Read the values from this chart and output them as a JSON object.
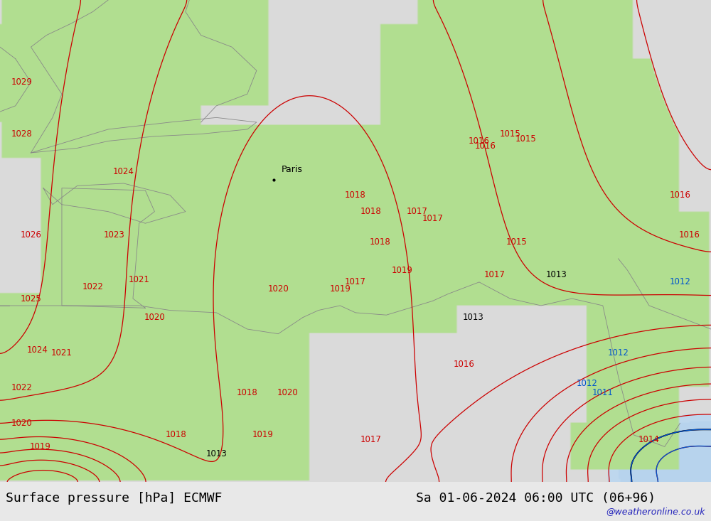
{
  "title_left": "Surface pressure [hPa] ECMWF",
  "title_right": "Sa 01-06-2024 06:00 UTC (06+96)",
  "watermark": "@weatheronline.co.uk",
  "bg_gray": [
    0.855,
    0.855,
    0.855
  ],
  "bg_green": [
    0.698,
    0.871,
    0.565
  ],
  "bg_blue": [
    0.749,
    0.847,
    0.937
  ],
  "isobar_red": "#cc0000",
  "isobar_black": "#000000",
  "isobar_blue": "#0055cc",
  "coast_color": "#888888",
  "paris_label": "Paris",
  "paris_lon": 2.35,
  "paris_lat": 48.85,
  "lon_min": -6.5,
  "lon_max": 16.5,
  "lat_min": 36.0,
  "lat_max": 56.5,
  "title_fontsize": 13,
  "label_fontsize": 8.5,
  "watermark_fontsize": 9
}
